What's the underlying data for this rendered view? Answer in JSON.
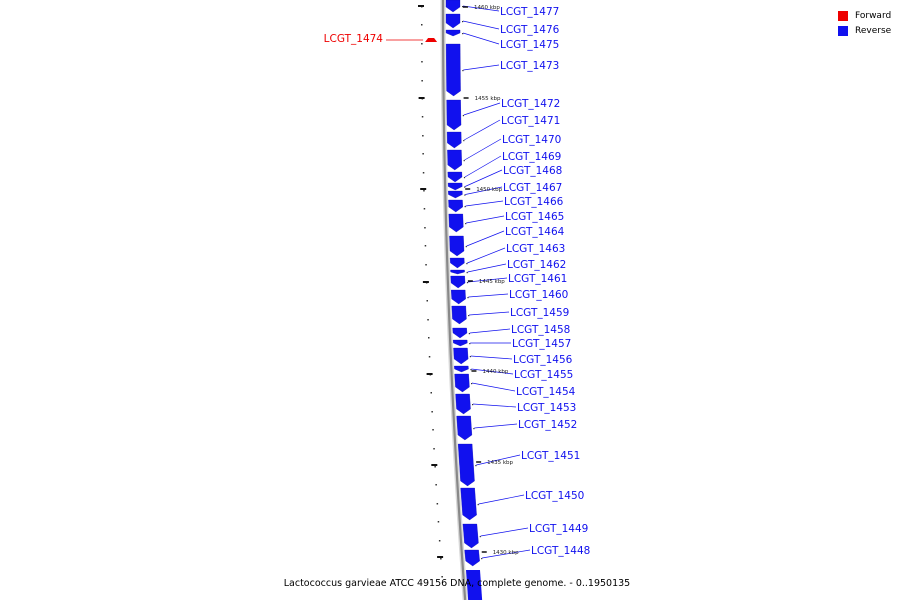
{
  "legend": {
    "forward_label": "Forward",
    "reverse_label": "Reverse",
    "forward_color": "#ee0000",
    "reverse_color": "#1111ee"
  },
  "caption": "Lactococcus garvieae ATCC 49156 DNA, complete genome. - 0..1950135",
  "backbone_color": "#888888",
  "genes": [
    {
      "name": "LCGT_1477",
      "strand": "reverse"
    },
    {
      "name": "LCGT_1476",
      "strand": "reverse"
    },
    {
      "name": "LCGT_1475",
      "strand": "reverse"
    },
    {
      "name": "LCGT_1474",
      "strand": "forward"
    },
    {
      "name": "LCGT_1473",
      "strand": "reverse"
    },
    {
      "name": "LCGT_1472",
      "strand": "reverse"
    },
    {
      "name": "LCGT_1471",
      "strand": "reverse"
    },
    {
      "name": "LCGT_1470",
      "strand": "reverse"
    },
    {
      "name": "LCGT_1469",
      "strand": "reverse"
    },
    {
      "name": "LCGT_1468",
      "strand": "reverse"
    },
    {
      "name": "LCGT_1467",
      "strand": "reverse"
    },
    {
      "name": "LCGT_1466",
      "strand": "reverse"
    },
    {
      "name": "LCGT_1465",
      "strand": "reverse"
    },
    {
      "name": "LCGT_1464",
      "strand": "reverse"
    },
    {
      "name": "LCGT_1463",
      "strand": "reverse"
    },
    {
      "name": "LCGT_1462",
      "strand": "reverse"
    },
    {
      "name": "LCGT_1461",
      "strand": "reverse"
    },
    {
      "name": "LCGT_1460",
      "strand": "reverse"
    },
    {
      "name": "LCGT_1459",
      "strand": "reverse"
    },
    {
      "name": "LCGT_1458",
      "strand": "reverse"
    },
    {
      "name": "LCGT_1457",
      "strand": "reverse"
    },
    {
      "name": "LCGT_1456",
      "strand": "reverse"
    },
    {
      "name": "LCGT_1455",
      "strand": "reverse"
    },
    {
      "name": "LCGT_1454",
      "strand": "reverse"
    },
    {
      "name": "LCGT_1453",
      "strand": "reverse"
    },
    {
      "name": "LCGT_1452",
      "strand": "reverse"
    },
    {
      "name": "LCGT_1451",
      "strand": "reverse"
    },
    {
      "name": "LCGT_1450",
      "strand": "reverse"
    },
    {
      "name": "LCGT_1449",
      "strand": "reverse"
    },
    {
      "name": "LCGT_1448",
      "strand": "reverse"
    }
  ],
  "kbp_ticks": [
    "1460 kbp",
    "1455 kbp",
    "1450 kbp",
    "1445 kbp",
    "1440 kbp",
    "1435 kbp",
    "1430 kbp"
  ]
}
